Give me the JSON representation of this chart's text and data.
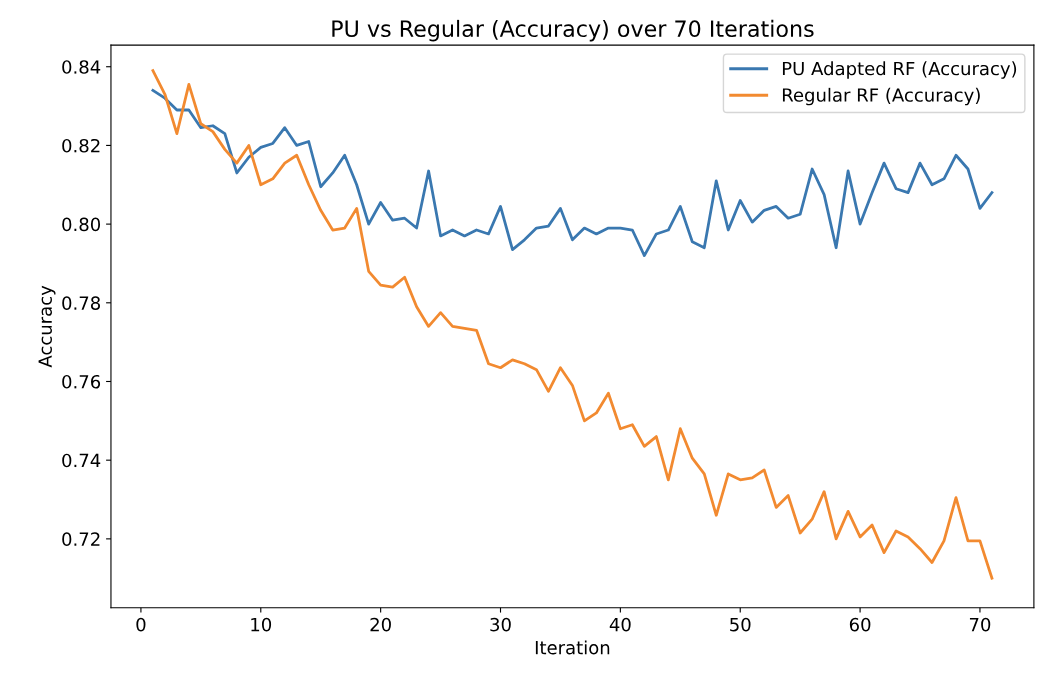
{
  "chart_data": {
    "type": "line",
    "title": "PU vs Regular (Accuracy) over 70 Iterations",
    "xlabel": "Iteration",
    "ylabel": "Accuracy",
    "x": [
      1,
      2,
      3,
      4,
      5,
      6,
      7,
      8,
      9,
      10,
      11,
      12,
      13,
      14,
      15,
      16,
      17,
      18,
      19,
      20,
      21,
      22,
      23,
      24,
      25,
      26,
      27,
      28,
      29,
      30,
      31,
      32,
      33,
      34,
      35,
      36,
      37,
      38,
      39,
      40,
      41,
      42,
      43,
      44,
      45,
      46,
      47,
      48,
      49,
      50,
      51,
      52,
      53,
      54,
      55,
      56,
      57,
      58,
      59,
      60,
      61,
      62,
      63,
      64,
      65,
      66,
      67,
      68,
      69,
      70,
      71
    ],
    "series": [
      {
        "name": "PU Adapted RF (Accuracy)",
        "color": "#3a78b0",
        "values": [
          0.834,
          0.832,
          0.829,
          0.829,
          0.8245,
          0.825,
          0.823,
          0.813,
          0.817,
          0.8195,
          0.8205,
          0.8245,
          0.82,
          0.821,
          0.8095,
          0.813,
          0.8175,
          0.81,
          0.8,
          0.8055,
          0.801,
          0.8015,
          0.799,
          0.8135,
          0.797,
          0.7985,
          0.797,
          0.7985,
          0.7975,
          0.8045,
          0.7935,
          0.796,
          0.799,
          0.7995,
          0.804,
          0.796,
          0.799,
          0.7975,
          0.799,
          0.799,
          0.7985,
          0.792,
          0.7975,
          0.7985,
          0.8045,
          0.7955,
          0.794,
          0.811,
          0.7985,
          0.806,
          0.8005,
          0.8035,
          0.8045,
          0.8015,
          0.8025,
          0.814,
          0.8075,
          0.794,
          0.8135,
          0.8,
          0.808,
          0.8155,
          0.809,
          0.808,
          0.8155,
          0.81,
          0.8115,
          0.8175,
          0.814,
          0.804,
          0.808
        ]
      },
      {
        "name": "Regular RF (Accuracy)",
        "color": "#f28a30",
        "values": [
          0.839,
          0.833,
          0.823,
          0.8355,
          0.8255,
          0.8235,
          0.819,
          0.8155,
          0.82,
          0.81,
          0.8115,
          0.8155,
          0.8175,
          0.81,
          0.8035,
          0.7985,
          0.799,
          0.804,
          0.788,
          0.7845,
          0.784,
          0.7865,
          0.779,
          0.774,
          0.7775,
          0.774,
          0.7735,
          0.773,
          0.7645,
          0.7635,
          0.7655,
          0.7645,
          0.763,
          0.7575,
          0.7635,
          0.759,
          0.75,
          0.752,
          0.757,
          0.748,
          0.749,
          0.7435,
          0.746,
          0.735,
          0.748,
          0.7405,
          0.7365,
          0.726,
          0.7365,
          0.735,
          0.7355,
          0.7375,
          0.728,
          0.731,
          0.7215,
          0.725,
          0.732,
          0.72,
          0.727,
          0.7205,
          0.7235,
          0.7165,
          0.722,
          0.7205,
          0.7175,
          0.714,
          0.7195,
          0.7305,
          0.7195,
          0.7195,
          0.71
        ]
      }
    ],
    "xlim": [
      -2.5,
      74.5
    ],
    "ylim": [
      0.7025,
      0.8455
    ],
    "xticks": [
      0,
      10,
      20,
      30,
      40,
      50,
      60,
      70
    ],
    "yticks": [
      {
        "value": 0.72,
        "label": "0.72"
      },
      {
        "value": 0.74,
        "label": "0.74"
      },
      {
        "value": 0.76,
        "label": "0.76"
      },
      {
        "value": 0.78,
        "label": "0.78"
      },
      {
        "value": 0.8,
        "label": "0.80"
      },
      {
        "value": 0.82,
        "label": "0.82"
      },
      {
        "value": 0.84,
        "label": "0.84"
      }
    ],
    "legend": "top right",
    "grid": false,
    "marker": "none",
    "line_style": "solid"
  }
}
